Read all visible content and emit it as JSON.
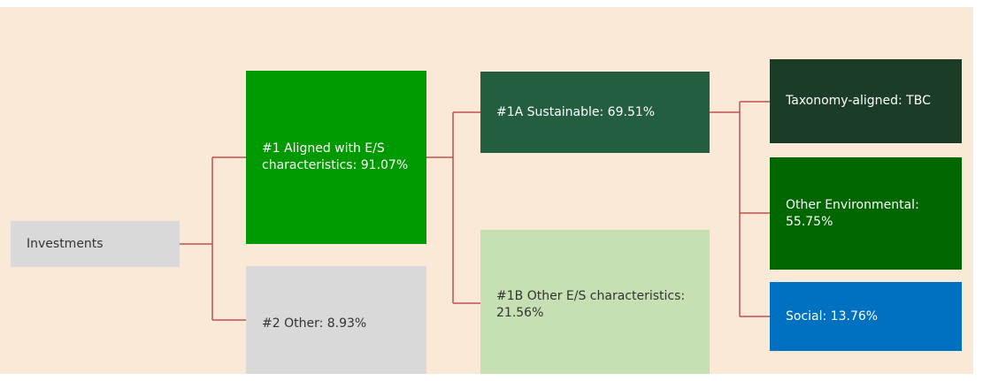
{
  "nodes": [
    {
      "label": "Investments"
    },
    {
      "label": "#1 Aligned with E/S characteristics: 91.07%"
    },
    {
      "label": "#2 Other: 8.93%"
    },
    {
      "label": "#1A Sustainable: 69.51%"
    },
    {
      "label": "#1B Other E/S characteristics: 21.56%"
    },
    {
      "label": "Taxonomy-aligned: TBC"
    },
    {
      "label": "Other Environmental: 55.75%"
    },
    {
      "label": "Social: 13.76%"
    }
  ]
}
